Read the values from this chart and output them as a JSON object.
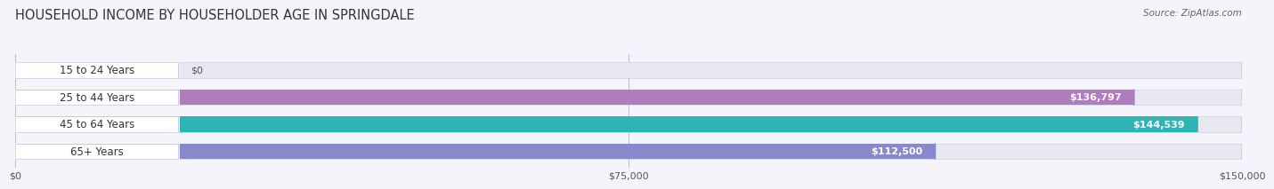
{
  "title": "HOUSEHOLD INCOME BY HOUSEHOLDER AGE IN SPRINGDALE",
  "source": "Source: ZipAtlas.com",
  "categories": [
    "15 to 24 Years",
    "25 to 44 Years",
    "45 to 64 Years",
    "65+ Years"
  ],
  "values": [
    0,
    136797,
    144539,
    112500
  ],
  "labels": [
    "$0",
    "$136,797",
    "$144,539",
    "$112,500"
  ],
  "bar_colors": [
    "#a8c8e8",
    "#b07bbf",
    "#2db5b5",
    "#8888cc"
  ],
  "bar_bg_color": "#e8e8f2",
  "bar_bg_edge": "#d0d0e0",
  "label_colors": [
    "#555555",
    "#ffffff",
    "#ffffff",
    "#ffffff"
  ],
  "xlim": [
    0,
    150000
  ],
  "xticks": [
    0,
    75000,
    150000
  ],
  "xticklabels": [
    "$0",
    "$75,000",
    "$150,000"
  ],
  "background_color": "#f4f4fa",
  "title_fontsize": 10.5,
  "source_fontsize": 7.5,
  "label_fontsize": 8,
  "category_fontsize": 8.5,
  "tick_fontsize": 8
}
